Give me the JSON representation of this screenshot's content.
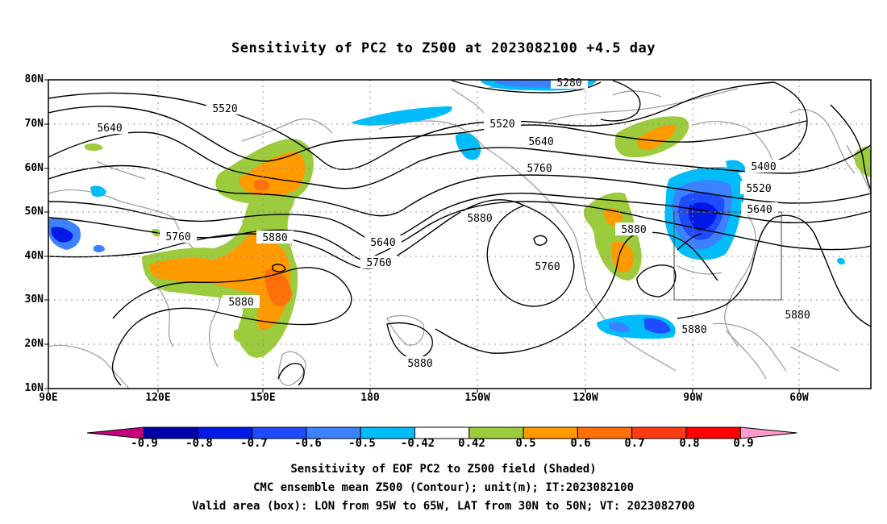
{
  "title": "Sensitivity of PC2 to Z500 at 2023082100 +4.5 day",
  "map": {
    "lat_ticks": [
      "80N",
      "70N",
      "60N",
      "50N",
      "40N",
      "30N",
      "20N",
      "10N"
    ],
    "lon_ticks": [
      "90E",
      "120E",
      "150E",
      "180",
      "150W",
      "120W",
      "90W",
      "60W"
    ],
    "contour_labels": [
      "5280",
      "5520",
      "5520",
      "5640",
      "5640",
      "5760",
      "5760",
      "5880",
      "5640",
      "5760",
      "5880",
      "5760",
      "5880",
      "5400",
      "5520",
      "5640",
      "5880",
      "5880",
      "5880",
      "5880"
    ],
    "valid_box": {
      "lon_from": "95W",
      "lon_to": "65W",
      "lat_from": "30N",
      "lat_to": "50N"
    }
  },
  "colorbar": {
    "labels": [
      "-0.9",
      "-0.8",
      "-0.7",
      "-0.6",
      "-0.5",
      "-0.42",
      "0.42",
      "0.5",
      "0.6",
      "0.7",
      "0.8",
      "0.9"
    ],
    "colors": [
      "#0000a8",
      "#0019e6",
      "#1f4cff",
      "#3c82ff",
      "#00bdfa",
      "#ffffff",
      "#9ccb3d",
      "#ff9a00",
      "#ff6f0a",
      "#ff3b14",
      "#ff0000"
    ],
    "under_color": "#c8007d",
    "over_color": "#ff9acb"
  },
  "footer": {
    "line1": "Sensitivity of EOF PC2 to Z500 field (Shaded)",
    "line2": "CMC ensemble mean Z500 (Contour); unit(m); IT:2023082100",
    "line3": "Valid area (box): LON from 95W to 65W, LAT from 30N to 50N; VT: 2023082700"
  }
}
